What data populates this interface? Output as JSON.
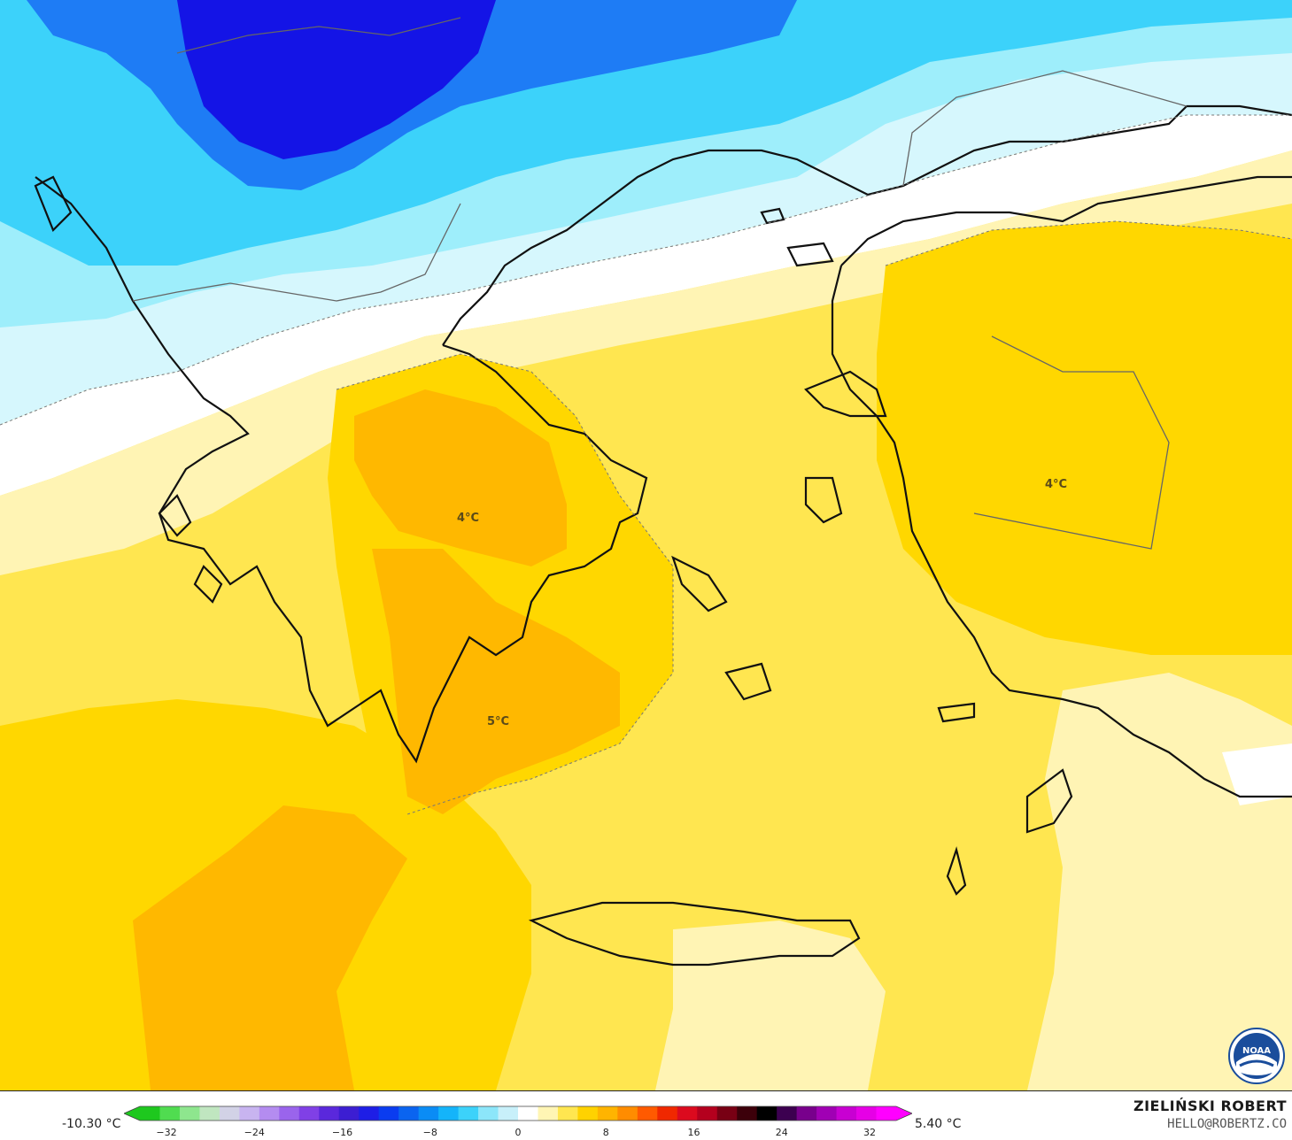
{
  "map_labels": {
    "label_central_greece": "4°C",
    "label_peloponnese": "5°C",
    "label_anatolia": "4°C"
  },
  "legend": {
    "min_value": "-10.30 °C",
    "max_value": "5.40 °C",
    "ticks": [
      "−32",
      "−24",
      "−16",
      "−8",
      "0",
      "8",
      "16",
      "24",
      "32"
    ],
    "colors": [
      "#1ec81e",
      "#50dc50",
      "#8ee68e",
      "#c0e6c0",
      "#d2d2e6",
      "#c8b4f0",
      "#b48cf0",
      "#9a64ec",
      "#8040e6",
      "#5a28dc",
      "#3c1ed2",
      "#1e1ee6",
      "#0a3cf0",
      "#0a64f0",
      "#0a8cf5",
      "#14b4fa",
      "#3cd2fa",
      "#8ce6fa",
      "#c8f0fa",
      "#ffffff",
      "#fff5b4",
      "#ffe650",
      "#ffd200",
      "#ffb400",
      "#ff8c00",
      "#ff5a00",
      "#f02800",
      "#dc0a1e",
      "#b4001e",
      "#780014",
      "#3c000a",
      "#000000",
      "#3c0050",
      "#78008c",
      "#a000b4",
      "#c800d2",
      "#e600e6",
      "#ff00ff"
    ]
  },
  "credits": {
    "author": "ZIELIŃSKI ROBERT",
    "email": "HELLO@ROBERTZ.CO",
    "logo_text": "NOAA"
  },
  "colors": {
    "deep_blue": "#1414e6",
    "blue": "#1e7cf5",
    "light_blue": "#3cd2fa",
    "pale_blue": "#9eeefb",
    "paler_blue": "#d6f7fd",
    "white": "#ffffff",
    "pale_yellow": "#fff4b4",
    "yellow": "#ffe650",
    "gold": "#ffd700",
    "orange": "#ffb800"
  }
}
